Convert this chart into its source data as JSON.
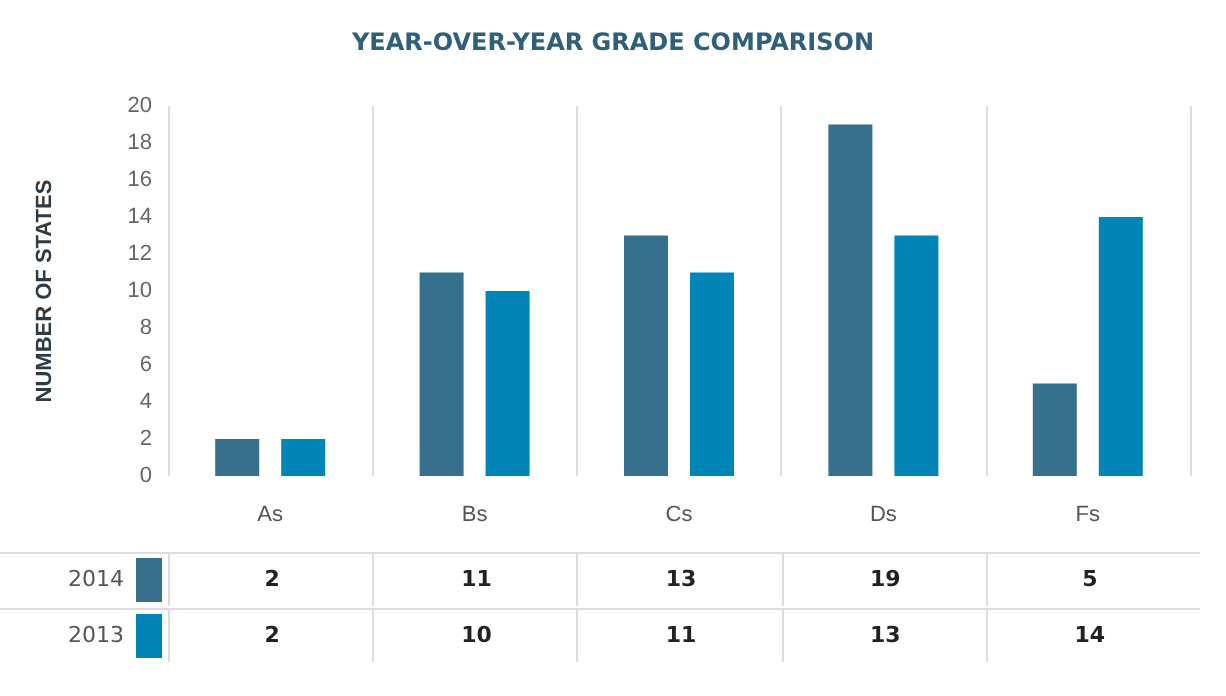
{
  "chart_data": {
    "type": "bar",
    "title": "YEAR-OVER-YEAR GRADE COMPARISON",
    "ylabel": "NUMBER OF STATES",
    "categories": [
      "As",
      "Bs",
      "Cs",
      "Ds",
      "Fs"
    ],
    "series": [
      {
        "name": "2014",
        "color": "#36708c",
        "values": [
          2,
          11,
          13,
          19,
          5
        ]
      },
      {
        "name": "2013",
        "color": "#0184b6",
        "values": [
          2,
          10,
          11,
          13,
          14
        ]
      }
    ],
    "ylim": [
      0,
      20
    ],
    "yticks": [
      0,
      2,
      4,
      6,
      8,
      10,
      12,
      14,
      16,
      18,
      20
    ],
    "grid": "x",
    "legend": "bottom left",
    "data_labels": true
  }
}
